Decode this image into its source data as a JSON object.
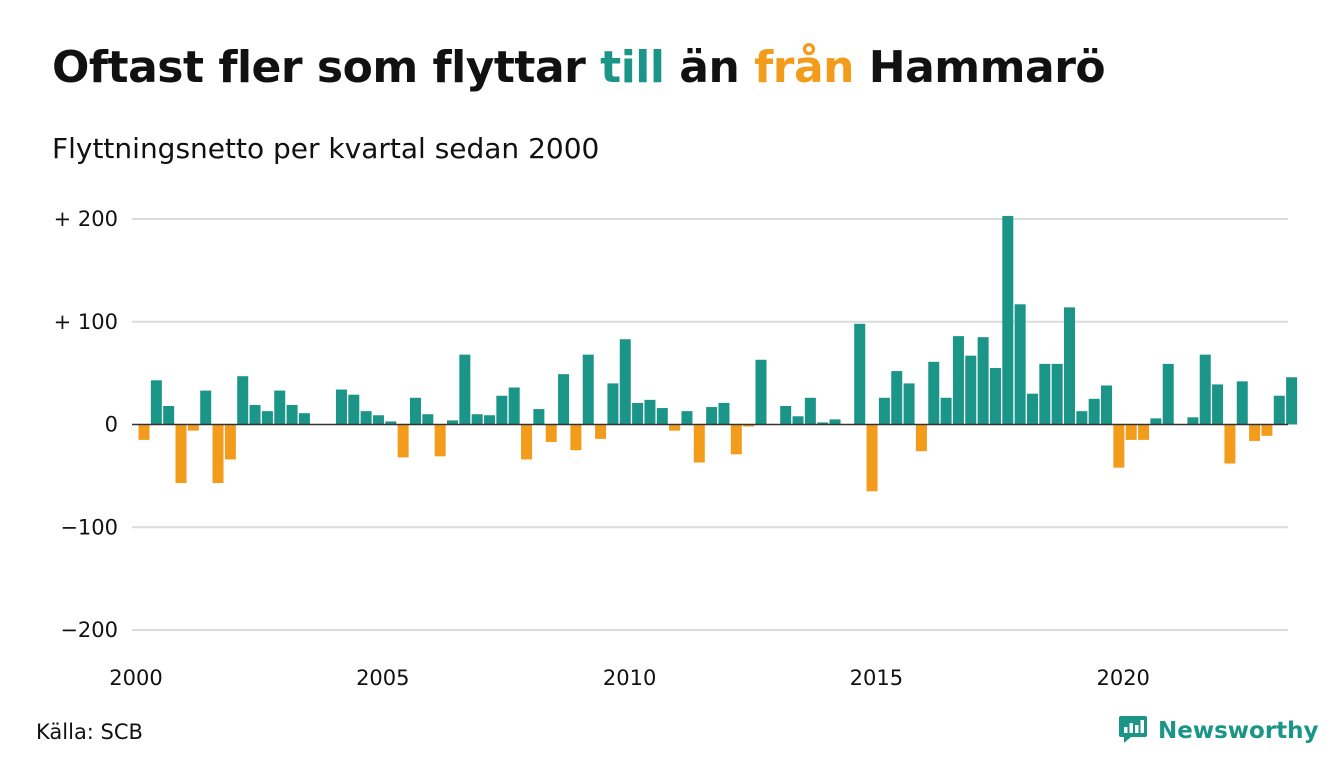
{
  "title": {
    "part1": "Oftast fler som flyttar ",
    "till": "till",
    "part2": " än ",
    "fran": "från",
    "part3": " Hammarö"
  },
  "subtitle": "Flyttningsnetto per kvartal sedan 2000",
  "source": "Källa: SCB",
  "brand": {
    "name": "Newsworthy",
    "icon": "bar-chart-speech-bubble-icon"
  },
  "colors": {
    "positive": "#1b9587",
    "negative": "#f39c1c",
    "grid": "#dcdcdc",
    "zero_line": "#333333",
    "text": "#111111"
  },
  "chart_data": {
    "type": "bar",
    "title": "Oftast fler som flyttar till än från Hammarö",
    "subtitle": "Flyttningsnetto per kvartal sedan 2000",
    "xlabel": "",
    "ylabel": "",
    "ylim": [
      -200,
      200
    ],
    "y_ticks": [
      {
        "value": 200,
        "label": "+ 200"
      },
      {
        "value": 100,
        "label": "+ 100"
      },
      {
        "value": 0,
        "label": "0"
      },
      {
        "value": -100,
        "label": "−100"
      },
      {
        "value": -200,
        "label": "−200"
      }
    ],
    "x_ticks": [
      "2000",
      "2005",
      "2010",
      "2015",
      "2020"
    ],
    "grid": true,
    "start": "2000 Q1",
    "frequency": "quarterly",
    "positive_color": "#1b9587",
    "negative_color": "#f39c1c",
    "values": [
      -15,
      43,
      18,
      -57,
      -6,
      33,
      -57,
      -34,
      47,
      19,
      13,
      33,
      19,
      11,
      0,
      0,
      34,
      29,
      13,
      9,
      3,
      -32,
      26,
      10,
      -31,
      4,
      68,
      10,
      9,
      28,
      36,
      -34,
      15,
      -17,
      49,
      -25,
      68,
      -14,
      40,
      83,
      21,
      24,
      16,
      -6,
      13,
      -37,
      17,
      21,
      -29,
      -2,
      63,
      0,
      18,
      8,
      26,
      2,
      5,
      0,
      98,
      -65,
      26,
      52,
      40,
      -26,
      61,
      26,
      86,
      67,
      85,
      55,
      203,
      117,
      30,
      59,
      59,
      114,
      13,
      25,
      38,
      -42,
      -15,
      -15,
      6,
      59,
      0,
      7,
      68,
      39,
      -38,
      42,
      -16,
      -11,
      28,
      46
    ]
  }
}
